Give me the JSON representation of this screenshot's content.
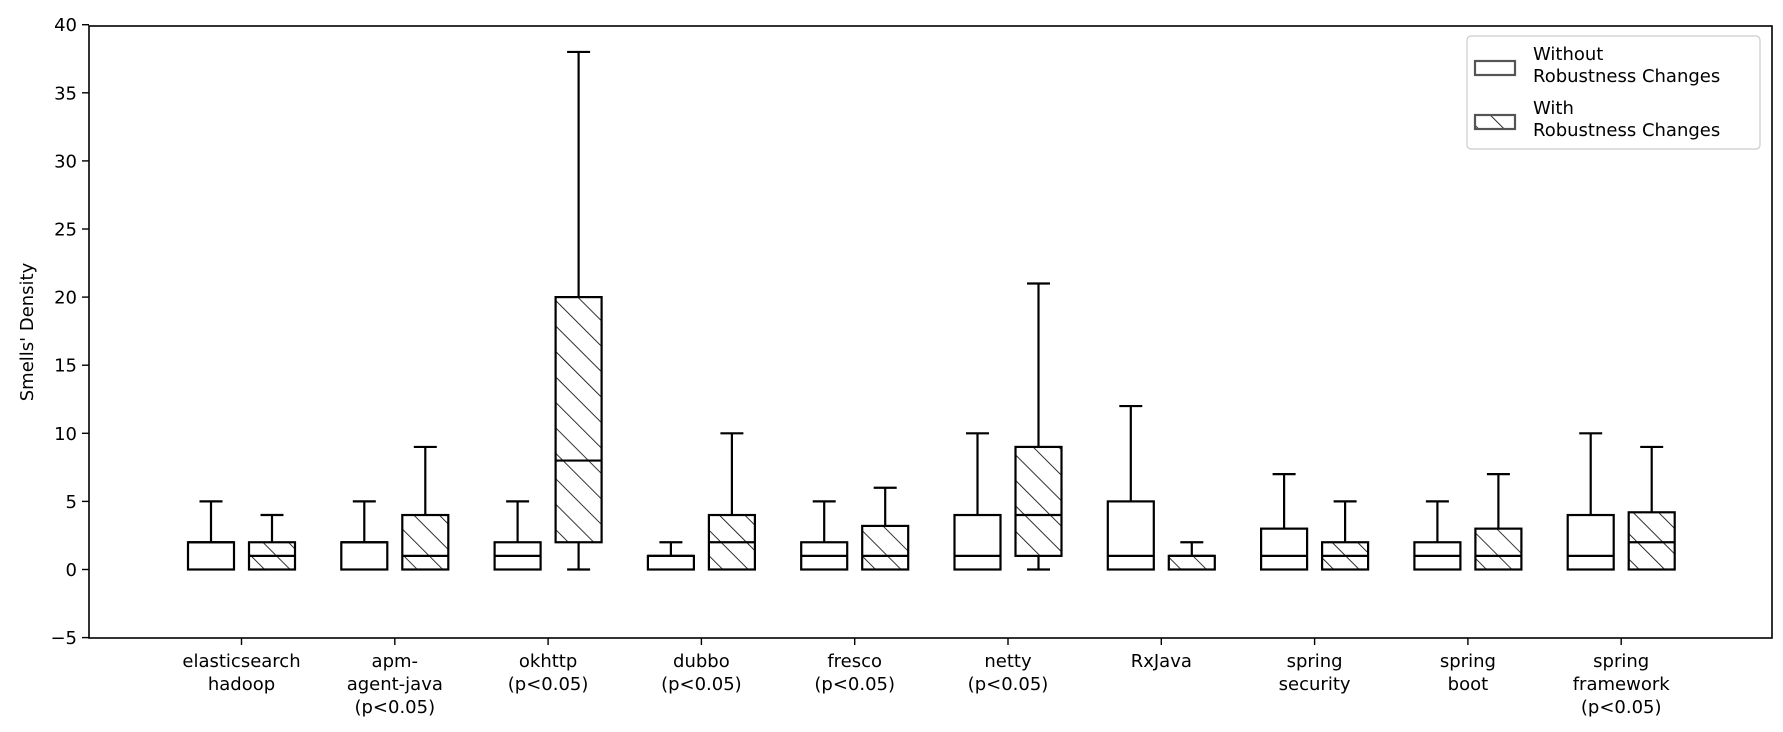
{
  "chart_data": {
    "type": "box",
    "title": "",
    "xlabel": "",
    "ylabel": "Smells' Density",
    "ylim": [
      -5,
      40
    ],
    "yticks": [
      -5,
      0,
      5,
      10,
      15,
      20,
      25,
      30,
      35,
      40
    ],
    "grid": false,
    "legend_position": "top-right",
    "categories": [
      [
        "elasticsearch",
        "hadoop"
      ],
      [
        "apm-",
        "agent-java",
        "(p<0.05)"
      ],
      [
        "okhttp",
        "(p<0.05)"
      ],
      [
        "dubbo",
        "(p<0.05)"
      ],
      [
        "fresco",
        "(p<0.05)"
      ],
      [
        "netty",
        "(p<0.05)"
      ],
      [
        "RxJava"
      ],
      [
        "spring",
        "security"
      ],
      [
        "spring",
        "boot"
      ],
      [
        "spring",
        "framework",
        "(p<0.05)"
      ]
    ],
    "series": [
      {
        "name": [
          "Without",
          "Robustness Changes"
        ],
        "hatch": false,
        "boxes": [
          {
            "min": 0,
            "q1": 0,
            "median": 2,
            "q3": 2,
            "max": 5
          },
          {
            "min": 0,
            "q1": 0,
            "median": 2,
            "q3": 2,
            "max": 5
          },
          {
            "min": 0,
            "q1": 0,
            "median": 1,
            "q3": 2,
            "max": 5
          },
          {
            "min": 0,
            "q1": 0,
            "median": 1,
            "q3": 1,
            "max": 2
          },
          {
            "min": 0,
            "q1": 0,
            "median": 1,
            "q3": 2,
            "max": 5
          },
          {
            "min": 0,
            "q1": 0,
            "median": 1,
            "q3": 4,
            "max": 10
          },
          {
            "min": 0,
            "q1": 0,
            "median": 1,
            "q3": 5,
            "max": 12
          },
          {
            "min": 0,
            "q1": 0,
            "median": 1,
            "q3": 3,
            "max": 7
          },
          {
            "min": 0,
            "q1": 0,
            "median": 1,
            "q3": 2,
            "max": 5
          },
          {
            "min": 0,
            "q1": 0,
            "median": 1,
            "q3": 4,
            "max": 10
          }
        ]
      },
      {
        "name": [
          "With",
          "Robustness Changes"
        ],
        "hatch": true,
        "boxes": [
          {
            "min": 0,
            "q1": 0,
            "median": 1,
            "q3": 2,
            "max": 4
          },
          {
            "min": 0,
            "q1": 0,
            "median": 1,
            "q3": 4,
            "max": 9
          },
          {
            "min": 0,
            "q1": 2,
            "median": 8,
            "q3": 20,
            "max": 38
          },
          {
            "min": 0,
            "q1": 0,
            "median": 2,
            "q3": 4,
            "max": 10
          },
          {
            "min": 0,
            "q1": 0,
            "median": 1,
            "q3": 3.2,
            "max": 6
          },
          {
            "min": 0,
            "q1": 1,
            "median": 4,
            "q3": 9,
            "max": 21
          },
          {
            "min": 0,
            "q1": 0,
            "median": 1,
            "q3": 1,
            "max": 2
          },
          {
            "min": 0,
            "q1": 0,
            "median": 1,
            "q3": 2,
            "max": 5
          },
          {
            "min": 0,
            "q1": 0,
            "median": 1,
            "q3": 3,
            "max": 7
          },
          {
            "min": 0,
            "q1": 0,
            "median": 2,
            "q3": 4.2,
            "max": 9
          }
        ]
      }
    ]
  }
}
